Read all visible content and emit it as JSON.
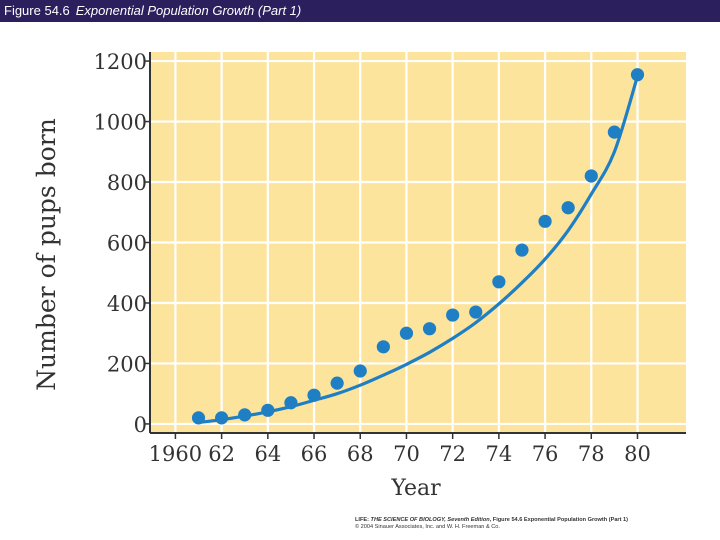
{
  "header": {
    "figure_number": "Figure 54.6",
    "figure_title": "Exponential Population Growth (Part 1)"
  },
  "credit": {
    "prefix": "LIFE:",
    "book": "THE SCIENCE OF BIOLOGY, Seventh Edition",
    "figure": ", Figure 54.6 Exponential Population Growth (Part 1)",
    "copyright": "© 2004 Sinauer Associates, Inc. and W. H. Freeman & Co."
  },
  "colors": {
    "plot_background": "#fde49c",
    "grid": "#ffffff",
    "series": "#1f7fc4",
    "axis": "#333333",
    "text": "#333333"
  },
  "chart_data": {
    "type": "scatter",
    "title": "Exponential Population Growth (Part 1)",
    "xlabel": "Year",
    "ylabel": "Number of pups born",
    "xlim": [
      1958.9,
      1982.1
    ],
    "ylim": [
      -30,
      1230
    ],
    "x_ticks": [
      1960,
      1962,
      1964,
      1966,
      1968,
      1970,
      1972,
      1974,
      1976,
      1978,
      1980
    ],
    "x_tick_labels": [
      "1960",
      "62",
      "64",
      "66",
      "68",
      "70",
      "72",
      "74",
      "76",
      "78",
      "80"
    ],
    "y_ticks": [
      0,
      200,
      400,
      600,
      800,
      1000,
      1200
    ],
    "y_tick_labels": [
      "0",
      "200",
      "400",
      "600",
      "800",
      "1000",
      "1200"
    ],
    "grid": true,
    "series": [
      {
        "name": "Pups born",
        "x": [
          1961,
          1962,
          1963,
          1964,
          1965,
          1966,
          1967,
          1968,
          1969,
          1970,
          1971,
          1972,
          1973,
          1974,
          1975,
          1976,
          1977,
          1978,
          1979,
          1980
        ],
        "y": [
          20,
          20,
          30,
          45,
          70,
          95,
          135,
          175,
          255,
          300,
          315,
          360,
          370,
          470,
          575,
          670,
          715,
          820,
          965,
          1155
        ]
      }
    ],
    "trend_curve": {
      "type": "exponential",
      "x": [
        1961,
        1962,
        1963,
        1964,
        1965,
        1966,
        1967,
        1968,
        1969,
        1970,
        1971,
        1972,
        1973,
        1974,
        1975,
        1976,
        1977,
        1978,
        1979,
        1980
      ],
      "y": [
        5,
        14,
        26,
        40,
        57,
        78,
        100,
        128,
        161,
        197,
        237,
        283,
        335,
        397,
        467,
        545,
        640,
        760,
        900,
        1150
      ]
    }
  }
}
